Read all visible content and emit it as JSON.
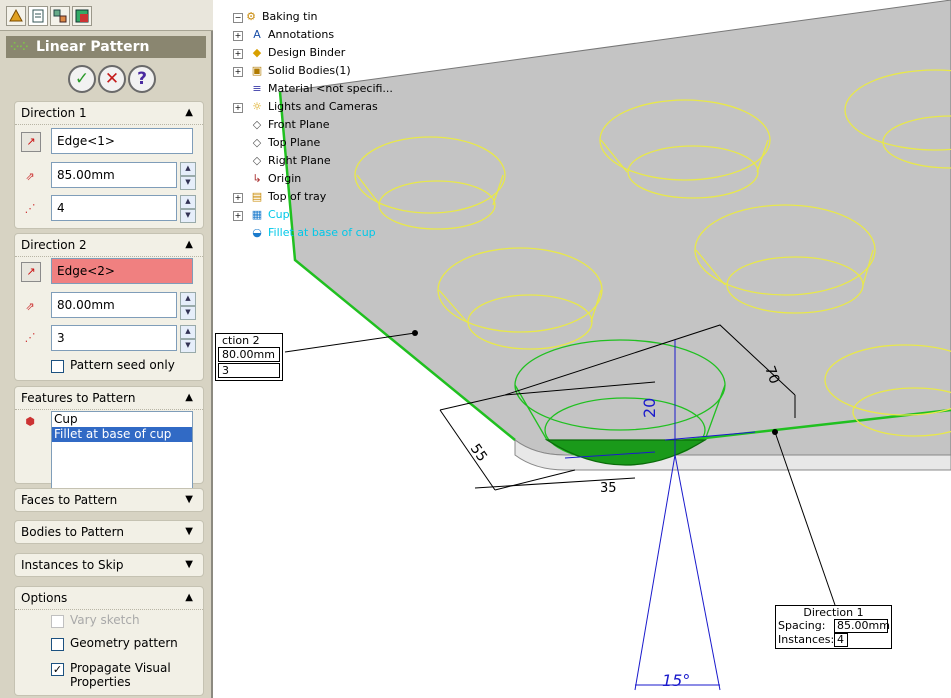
{
  "pm": {
    "tabs": [
      "feature-manager",
      "property-manager",
      "configuration-manager",
      "display-manager"
    ],
    "title": "Linear Pattern",
    "ok_label": "✓",
    "cancel_label": "✕",
    "help_label": "?",
    "direction1": {
      "header": "Direction 1",
      "edge": "Edge<1>",
      "spacing": "85.00mm",
      "instances": "4"
    },
    "direction2": {
      "header": "Direction 2",
      "edge": "Edge<2>",
      "spacing": "80.00mm",
      "instances": "3",
      "seed_only_label": "Pattern seed only"
    },
    "features": {
      "header": "Features to Pattern",
      "items": [
        "Cup",
        "Fillet at base of cup"
      ]
    },
    "faces_header": "Faces to Pattern",
    "bodies_header": "Bodies to Pattern",
    "skip_header": "Instances to Skip",
    "options": {
      "header": "Options",
      "vary_sketch": "Vary sketch",
      "geometry_pattern": "Geometry pattern",
      "propagate": "Propagate Visual Properties"
    }
  },
  "tree": {
    "root": "Baking tin",
    "items": [
      {
        "label": "Annotations",
        "expander": "+",
        "icon": "annotations-icon"
      },
      {
        "label": "Design Binder",
        "expander": "+",
        "icon": "design-binder-icon"
      },
      {
        "label": "Solid Bodies(1)",
        "expander": "+",
        "icon": "solid-bodies-icon"
      },
      {
        "label": "Material <not specifi...",
        "expander": "",
        "icon": "material-icon"
      },
      {
        "label": "Lights and Cameras",
        "expander": "+",
        "icon": "lights-icon"
      },
      {
        "label": "Front Plane",
        "expander": "",
        "icon": "plane-icon"
      },
      {
        "label": "Top Plane",
        "expander": "",
        "icon": "plane-icon"
      },
      {
        "label": "Right Plane",
        "expander": "",
        "icon": "plane-icon"
      },
      {
        "label": "Origin",
        "expander": "",
        "icon": "origin-icon"
      },
      {
        "label": "Top of tray",
        "expander": "+",
        "icon": "extrude-icon"
      },
      {
        "label": "Cup",
        "expander": "+",
        "icon": "cut-icon"
      },
      {
        "label": "Fillet at base of cup",
        "expander": "",
        "icon": "fillet-icon"
      }
    ]
  },
  "callout2": {
    "title": "ction 2",
    "spacing": "80.00mm",
    "instances": "3"
  },
  "callout1": {
    "title": "Direction 1",
    "spacing_label": "Spacing:",
    "spacing": "85.00mm",
    "instances_label": "Instances:",
    "instances": "4"
  },
  "dims": {
    "d20": "20",
    "d55": "55",
    "d70": "70",
    "d35": "35",
    "angle": "15°"
  },
  "colors": {
    "pm_bg": "#d7d3c3",
    "title_bg": "#8a8670",
    "error_field": "#f08080",
    "selection": "#316ac5",
    "preview_yellow": "#e8e84a",
    "edge_green": "#20c020",
    "dim_blue": "#1a1acc",
    "highlight_cyan": "#00c8e8"
  }
}
